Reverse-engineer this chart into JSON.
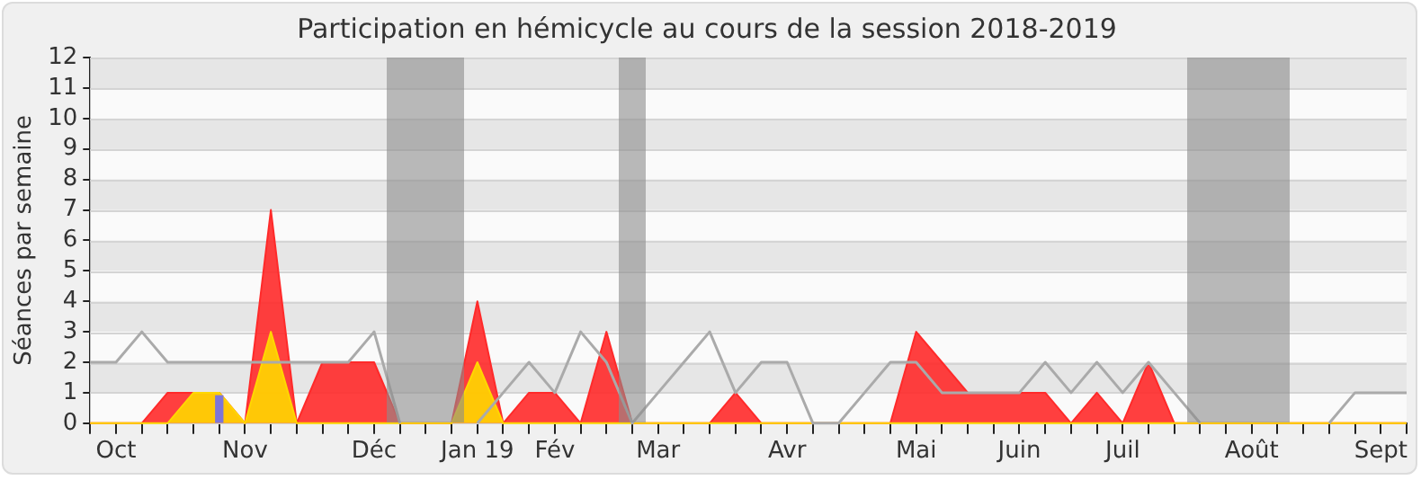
{
  "chart_data": {
    "type": "area",
    "title": "Participation en hémicycle au cours de la session 2018-2019",
    "ylabel": "Séances par semaine",
    "categories": [
      null,
      "Oct",
      null,
      null,
      null,
      null,
      "Nov",
      null,
      null,
      null,
      null,
      "Déc",
      null,
      null,
      null,
      "Jan 19",
      null,
      null,
      "Fév",
      null,
      null,
      null,
      "Mar",
      null,
      null,
      null,
      null,
      "Avr",
      null,
      null,
      null,
      null,
      "Mai",
      null,
      null,
      null,
      "Juin",
      null,
      null,
      null,
      "Juil",
      null,
      null,
      null,
      null,
      "Août",
      null,
      null,
      null,
      null,
      "Sept",
      null
    ],
    "series": [
      {
        "color": "#ff2a2a",
        "values": [
          0,
          0,
          0,
          1,
          1,
          1,
          0,
          7,
          0,
          2,
          2,
          2,
          0,
          0,
          0,
          4,
          0,
          1,
          1,
          0,
          3,
          0,
          0,
          0,
          0,
          1,
          0,
          0,
          0,
          0,
          0,
          0,
          3,
          2,
          1,
          1,
          1,
          1,
          0,
          1,
          0,
          2,
          0,
          0,
          0,
          0,
          0,
          0,
          0,
          0,
          0,
          0
        ]
      },
      {
        "color": "#ffd700",
        "values": [
          0,
          0,
          0,
          0,
          1,
          1,
          0,
          3,
          0,
          0,
          0,
          0,
          0,
          0,
          0,
          2,
          0,
          0,
          0,
          0,
          0,
          0,
          0,
          0,
          0,
          0,
          0,
          0,
          0,
          0,
          0,
          0,
          0,
          0,
          0,
          0,
          0,
          0,
          0,
          0,
          0,
          0,
          0,
          0,
          0,
          0,
          0,
          0,
          0,
          0,
          0,
          0
        ]
      },
      {
        "type": "bar",
        "color": "#6666ff",
        "values": [
          null,
          null,
          null,
          null,
          null,
          0.9,
          null,
          null,
          null,
          null,
          null,
          null,
          null,
          null,
          null,
          null,
          null,
          null,
          null,
          null,
          null,
          null,
          null,
          null,
          null,
          null,
          null,
          null,
          null,
          null,
          null,
          null,
          null,
          null,
          null,
          null,
          null,
          null,
          null,
          null,
          null,
          null,
          null,
          null,
          null,
          null,
          null,
          null,
          null,
          null,
          null,
          null
        ]
      },
      {
        "type": "line",
        "color": "#aaaaaa",
        "values": [
          2,
          2,
          3,
          2,
          2,
          2,
          2,
          2,
          2,
          2,
          2,
          3,
          0,
          null,
          null,
          0,
          1,
          2,
          1,
          3,
          2,
          0,
          1,
          2,
          3,
          1,
          2,
          2,
          0,
          0,
          1,
          2,
          2,
          1,
          1,
          1,
          1,
          2,
          1,
          2,
          1,
          2,
          1,
          0,
          null,
          null,
          null,
          null,
          0,
          1,
          1,
          1
        ]
      }
    ],
    "ylim": [
      0,
      12
    ],
    "yticks": [
      0,
      1,
      2,
      3,
      4,
      5,
      6,
      7,
      8,
      9,
      10,
      11,
      12
    ],
    "grid": "y",
    "legend": false,
    "marker": "none"
  }
}
